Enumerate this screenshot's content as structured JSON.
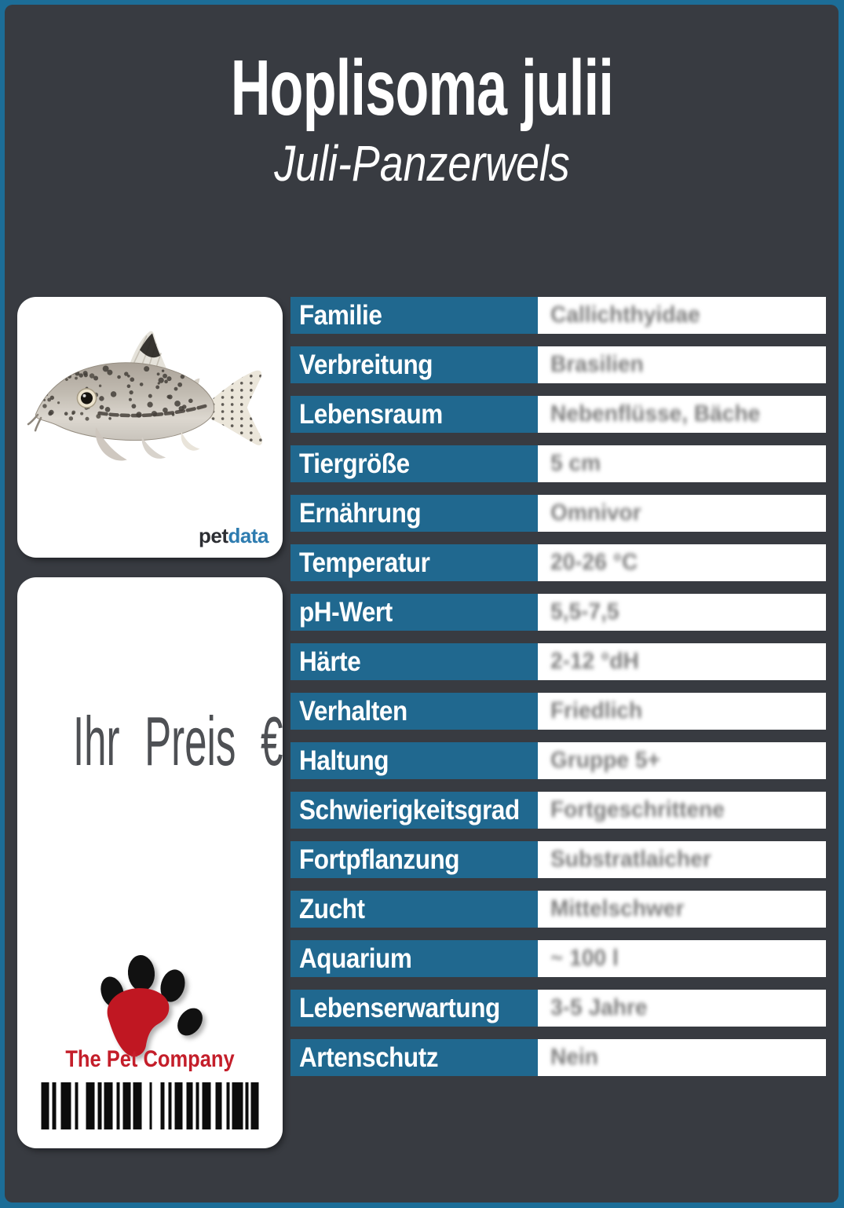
{
  "header": {
    "title": "Hoplisoma julii",
    "subtitle": "Juli-Panzerwels"
  },
  "photo_card": {
    "image_subject": "Corydoras julii Panzerwels Fisch",
    "brand_pet": "pet",
    "brand_data": "data"
  },
  "price_card": {
    "price_label": "Ihr Preis €",
    "company_name": "The Pet Company"
  },
  "table": {
    "rows": [
      {
        "label": "Familie",
        "value": "Callichthyidae"
      },
      {
        "label": "Verbreitung",
        "value": "Brasilien"
      },
      {
        "label": "Lebensraum",
        "value": "Nebenflüsse, Bäche"
      },
      {
        "label": "Tiergröße",
        "value": "5 cm"
      },
      {
        "label": "Ernährung",
        "value": "Omnivor"
      },
      {
        "label": "Temperatur",
        "value": "20-26 °C"
      },
      {
        "label": "pH-Wert",
        "value": "5,5-7,5"
      },
      {
        "label": "Härte",
        "value": "2-12 °dH"
      },
      {
        "label": "Verhalten",
        "value": "Friedlich"
      },
      {
        "label": "Haltung",
        "value": "Gruppe 5+"
      },
      {
        "label": "Schwierigkeitsgrad",
        "value": "Fortgeschrittene"
      },
      {
        "label": "Fortpflanzung",
        "value": "Substratlaicher"
      },
      {
        "label": "Zucht",
        "value": "Mittelschwer"
      },
      {
        "label": "Aquarium",
        "value": "~ 100 l"
      },
      {
        "label": "Lebenserwartung",
        "value": "3-5 Jahre"
      },
      {
        "label": "Artenschutz",
        "value": "Nein"
      }
    ]
  },
  "barcode": {
    "bars": [
      10,
      4,
      5,
      6,
      13,
      5,
      4,
      10,
      11,
      4,
      5,
      3,
      11,
      5,
      4,
      4,
      10,
      3,
      11,
      10,
      3,
      11,
      5,
      5,
      4,
      4,
      10,
      5,
      8,
      4,
      4,
      4,
      11,
      6,
      8,
      6,
      4,
      3,
      14,
      3,
      4,
      3,
      10
    ]
  },
  "colors": {
    "frame_blue": "#1c6d97",
    "panel_dark": "#383b41",
    "cell_blue": "#20688f",
    "company_red": "#c41e2a",
    "brand_data_blue": "#2e7cb0",
    "price_text_gray": "#4e5054",
    "value_text_gray": "#7d7d7d"
  }
}
